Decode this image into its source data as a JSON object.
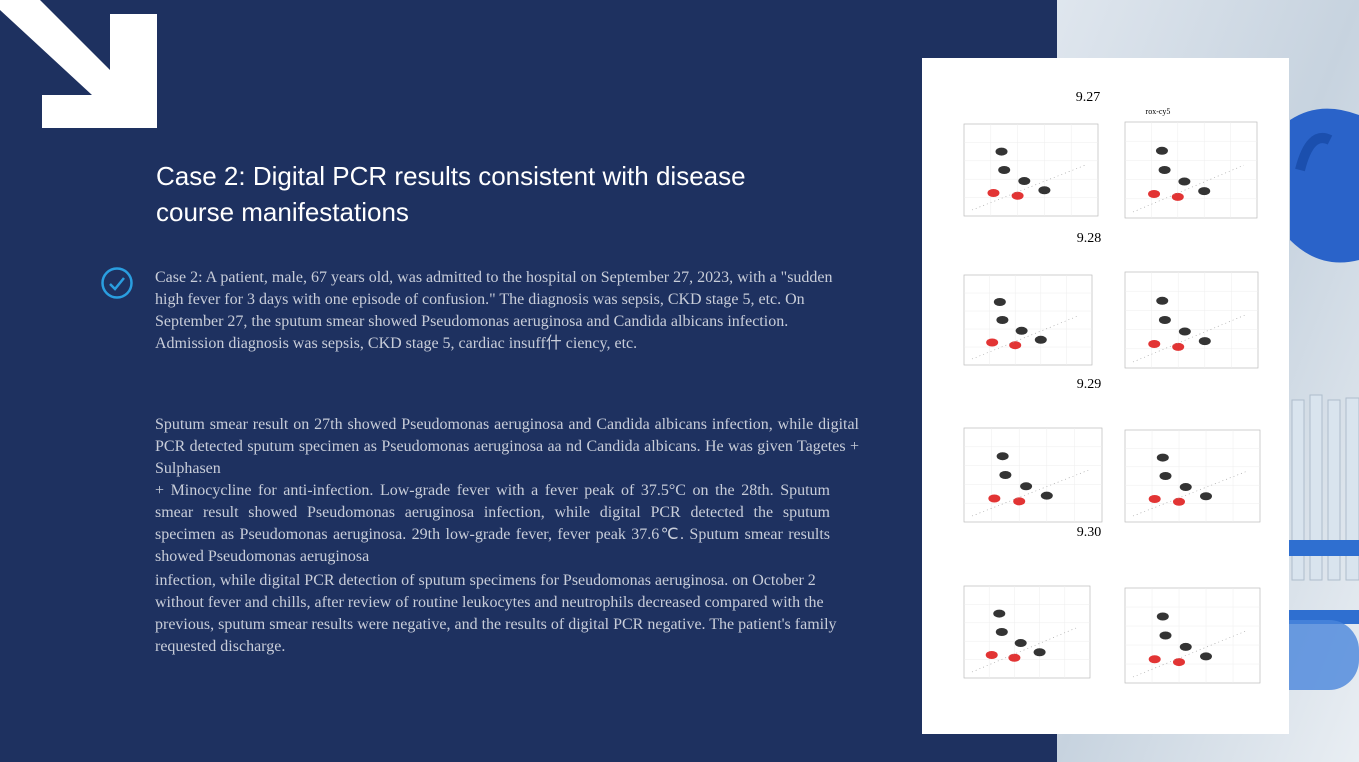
{
  "title": "Case 2: Digital PCR results consistent with disease course manifestations",
  "paragraphs": [
    "Case 2: A patient, male, 67 years old, was admitted to the hospital on September 27, 2023, with a \"sudden high fever for 3 days with one episode of confusion.\" The diagnosis was sepsis, CKD stage 5, etc. On September 27, the sputum smear showed Pseudomonas aeruginosa and Candida albicans infection. Admission diagnosis was sepsis, CKD stage 5, cardiac insuff什 ciency, etc.",
    "Sputum smear result on 27th showed Pseudomonas aeruginosa and Candida albicans infection, while digital PCR detected sputum specimen as Pseudomonas aeruginosa aa nd Candida albicans. He was given Tagetes + Sulphasen",
    "+ Minocycline for anti-infection. Low-grade fever with a fever peak of 37.5°C on the 28th. Sputum smear result showed Pseudomonas aeruginosa infection, while digital PCR detected the sputum specimen as Pseudomonas aeruginosa. 29th low-grade fever, fever peak 37.6℃. Sputum smear results showed Pseudomonas aeruginosa",
    "infection, while digital PCR detection of sputum specimens for Pseudomonas aeruginosa. on October 2 without fever and chills, after review of routine leukocytes and neutrophils decreased compared with the previous, sputum smear results were negative, and the results of digital PCR negative. The patient's family requested discharge."
  ],
  "figure": {
    "channel_label": "rox-cy5",
    "dates": [
      "9.27",
      "9.28",
      "9.29",
      "9.30"
    ]
  }
}
